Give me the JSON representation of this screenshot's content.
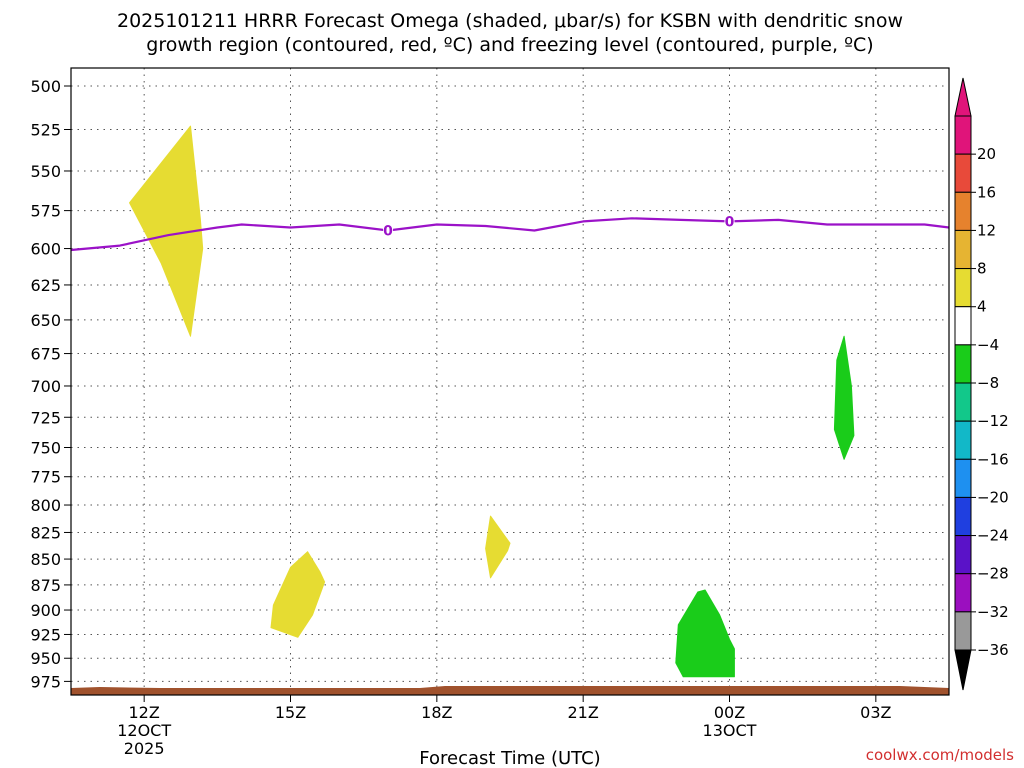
{
  "chart_data": {
    "type": "time-height cross section",
    "title_line1": "2025101211 HRRR Forecast Omega (shaded, μbar/s) for KSBN with dendritic snow",
    "title_line2": "growth region (contoured, red, ºC) and freezing level (contoured, purple, ºC)",
    "xlabel": "Forecast Time (UTC)",
    "credit": "coolwx.com/models",
    "x_range_hours": [
      -1.5,
      16.5
    ],
    "x_ticks": [
      {
        "hour": 0,
        "lines": [
          "12Z",
          "12OCT",
          "2025"
        ]
      },
      {
        "hour": 3,
        "lines": [
          "15Z"
        ]
      },
      {
        "hour": 6,
        "lines": [
          "18Z"
        ]
      },
      {
        "hour": 9,
        "lines": [
          "21Z"
        ]
      },
      {
        "hour": 12,
        "lines": [
          "00Z",
          "13OCT"
        ]
      },
      {
        "hour": 15,
        "lines": [
          "03Z"
        ]
      }
    ],
    "y_axis": {
      "type": "log-pressure",
      "unit": "hPa",
      "range": [
        490,
        990
      ],
      "inverted": true
    },
    "y_ticks": [
      500,
      525,
      550,
      575,
      600,
      625,
      650,
      675,
      700,
      725,
      750,
      775,
      800,
      825,
      850,
      875,
      900,
      925,
      950,
      975
    ],
    "grid": true,
    "colorbar": {
      "levels": [
        -36,
        -32,
        -28,
        -24,
        -20,
        -16,
        -12,
        -8,
        -4,
        4,
        8,
        12,
        16,
        20
      ],
      "colors": [
        "#999999",
        "#9b0fbf",
        "#5a12c8",
        "#1f3fe0",
        "#1e90f0",
        "#12b8c8",
        "#12c88a",
        "#1acc1a",
        "#ffffff",
        "#e6dc32",
        "#e6b432",
        "#e6822d",
        "#e84a3a",
        "#e0147a"
      ],
      "under_color": "#000000",
      "over_color": "#e0147a"
    },
    "omega_regions": [
      {
        "color": "#e6dc32",
        "points": [
          [
            -0.3,
            570
          ],
          [
            0.95,
            523
          ],
          [
            1.15,
            580
          ],
          [
            1.2,
            600
          ],
          [
            0.95,
            662
          ],
          [
            0.35,
            610
          ]
        ]
      },
      {
        "color": "#e6dc32",
        "points": [
          [
            2.6,
            918
          ],
          [
            2.65,
            895
          ],
          [
            3.0,
            858
          ],
          [
            3.35,
            843
          ],
          [
            3.6,
            862
          ],
          [
            3.7,
            872
          ],
          [
            3.45,
            905
          ],
          [
            3.15,
            928
          ]
        ]
      },
      {
        "color": "#e6dc32",
        "points": [
          [
            7.0,
            840
          ],
          [
            7.1,
            810
          ],
          [
            7.5,
            835
          ],
          [
            7.45,
            842
          ],
          [
            7.1,
            868
          ]
        ]
      },
      {
        "color": "#1acc1a",
        "points": [
          [
            10.95,
            915
          ],
          [
            11.35,
            882
          ],
          [
            11.5,
            880
          ],
          [
            11.8,
            905
          ],
          [
            12.0,
            930
          ],
          [
            12.1,
            940
          ],
          [
            12.1,
            970
          ],
          [
            11.05,
            970
          ],
          [
            10.9,
            955
          ]
        ]
      },
      {
        "color": "#1acc1a",
        "points": [
          [
            14.2,
            680
          ],
          [
            14.35,
            662
          ],
          [
            14.5,
            700
          ],
          [
            14.55,
            740
          ],
          [
            14.35,
            760
          ],
          [
            14.15,
            735
          ]
        ]
      }
    ],
    "freezing_level": {
      "label": "0",
      "color": "#9b12c8",
      "points": [
        [
          -1.5,
          601
        ],
        [
          -0.5,
          598
        ],
        [
          0.5,
          591
        ],
        [
          1.5,
          586
        ],
        [
          2.0,
          584
        ],
        [
          3.0,
          586
        ],
        [
          4.0,
          584
        ],
        [
          5.0,
          588
        ],
        [
          6.0,
          584
        ],
        [
          7.0,
          585
        ],
        [
          8.0,
          588
        ],
        [
          9.0,
          582
        ],
        [
          10.0,
          580
        ],
        [
          11.0,
          581
        ],
        [
          12.0,
          582
        ],
        [
          13.0,
          581
        ],
        [
          14.0,
          584
        ],
        [
          15.0,
          584
        ],
        [
          16.0,
          584
        ],
        [
          16.5,
          586
        ]
      ],
      "label_positions": [
        [
          5.0,
          588
        ],
        [
          12.0,
          582
        ]
      ]
    },
    "surface_band_color": "#a0522d"
  }
}
